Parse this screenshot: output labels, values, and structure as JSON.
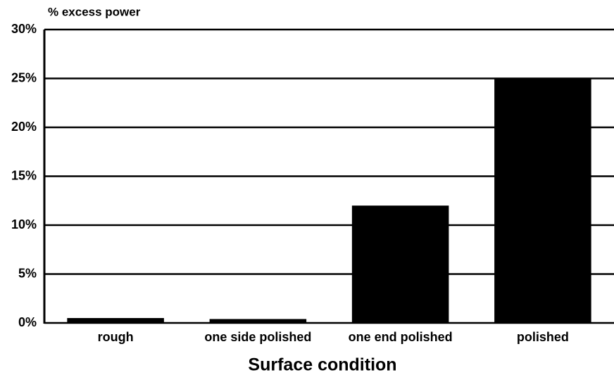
{
  "chart_data": {
    "type": "bar",
    "y_label": "% excess power",
    "x_label": "Surface condition",
    "categories": [
      "rough",
      "one side polished",
      "one end polished",
      "polished"
    ],
    "values": [
      0.5,
      0.4,
      12,
      25
    ],
    "color": "#000000",
    "ylim": [
      0,
      30
    ],
    "yticks": [
      {
        "value": 0,
        "label": "0%"
      },
      {
        "value": 5,
        "label": "5%"
      },
      {
        "value": 10,
        "label": "10%"
      },
      {
        "value": 15,
        "label": "15%"
      },
      {
        "value": 20,
        "label": "20%"
      },
      {
        "value": 25,
        "label": "25%"
      },
      {
        "value": 30,
        "label": "30%"
      }
    ],
    "grid": true
  }
}
